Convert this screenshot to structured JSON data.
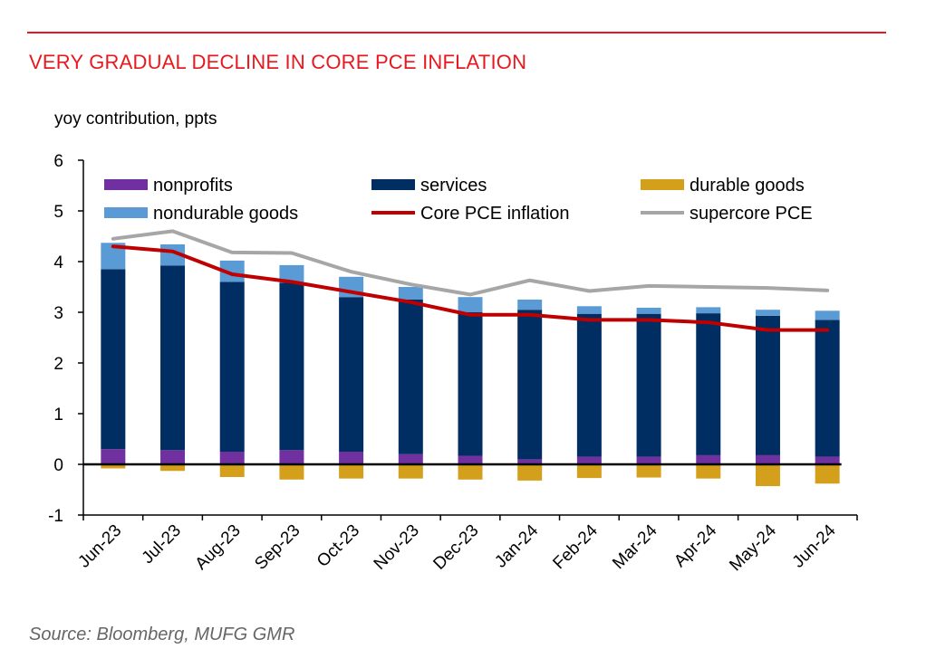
{
  "title": "VERY GRADUAL DECLINE IN CORE PCE INFLATION",
  "source": "Source: Bloomberg, MUFG GMR",
  "colors": {
    "accent": "#e8191e",
    "nonprofits": "#7030a0",
    "services": "#002d62",
    "durable": "#d4a01c",
    "nondurable": "#5b9bd5",
    "core": "#c00000",
    "supercore": "#a6a6a6"
  },
  "chart_data": {
    "type": "bar",
    "stacked": true,
    "ylabel": "yoy contribution, ppts",
    "ylim": [
      -1,
      6
    ],
    "yticks": [
      "-1",
      "0",
      "1",
      "2",
      "3",
      "4",
      "5",
      "6"
    ],
    "categories": [
      "Jun-23",
      "Jul-23",
      "Aug-23",
      "Sep-23",
      "Oct-23",
      "Nov-23",
      "Dec-23",
      "Jan-24",
      "Feb-24",
      "Mar-24",
      "Apr-24",
      "May-24",
      "Jun-24"
    ],
    "legend_position": "top",
    "series": [
      {
        "name": "nonprofits",
        "type": "bar",
        "color": "#7030a0",
        "values": [
          0.3,
          0.28,
          0.25,
          0.28,
          0.25,
          0.2,
          0.17,
          0.1,
          0.15,
          0.15,
          0.18,
          0.18,
          0.15
        ]
      },
      {
        "name": "services",
        "type": "bar",
        "color": "#002d62",
        "values": [
          3.55,
          3.64,
          3.35,
          3.3,
          3.05,
          3.05,
          2.83,
          2.95,
          2.82,
          2.82,
          2.8,
          2.75,
          2.7
        ]
      },
      {
        "name": "durable goods",
        "type": "bar",
        "color": "#d4a01c",
        "values": [
          -0.08,
          -0.13,
          -0.25,
          -0.3,
          -0.28,
          -0.28,
          -0.3,
          -0.32,
          -0.27,
          -0.26,
          -0.28,
          -0.43,
          -0.38
        ]
      },
      {
        "name": "nondurable goods",
        "type": "bar",
        "color": "#5b9bd5",
        "values": [
          0.52,
          0.42,
          0.42,
          0.35,
          0.4,
          0.25,
          0.3,
          0.2,
          0.15,
          0.12,
          0.12,
          0.12,
          0.18
        ]
      },
      {
        "name": "Core PCE inflation",
        "type": "line",
        "color": "#c00000",
        "values": [
          4.3,
          4.2,
          3.75,
          3.6,
          3.4,
          3.2,
          2.95,
          2.95,
          2.85,
          2.85,
          2.8,
          2.65,
          2.65
        ]
      },
      {
        "name": "supercore PCE",
        "type": "line",
        "color": "#a6a6a6",
        "values": [
          4.45,
          4.6,
          4.18,
          4.17,
          3.8,
          3.55,
          3.35,
          3.63,
          3.42,
          3.52,
          3.5,
          3.48,
          3.43
        ]
      }
    ]
  }
}
